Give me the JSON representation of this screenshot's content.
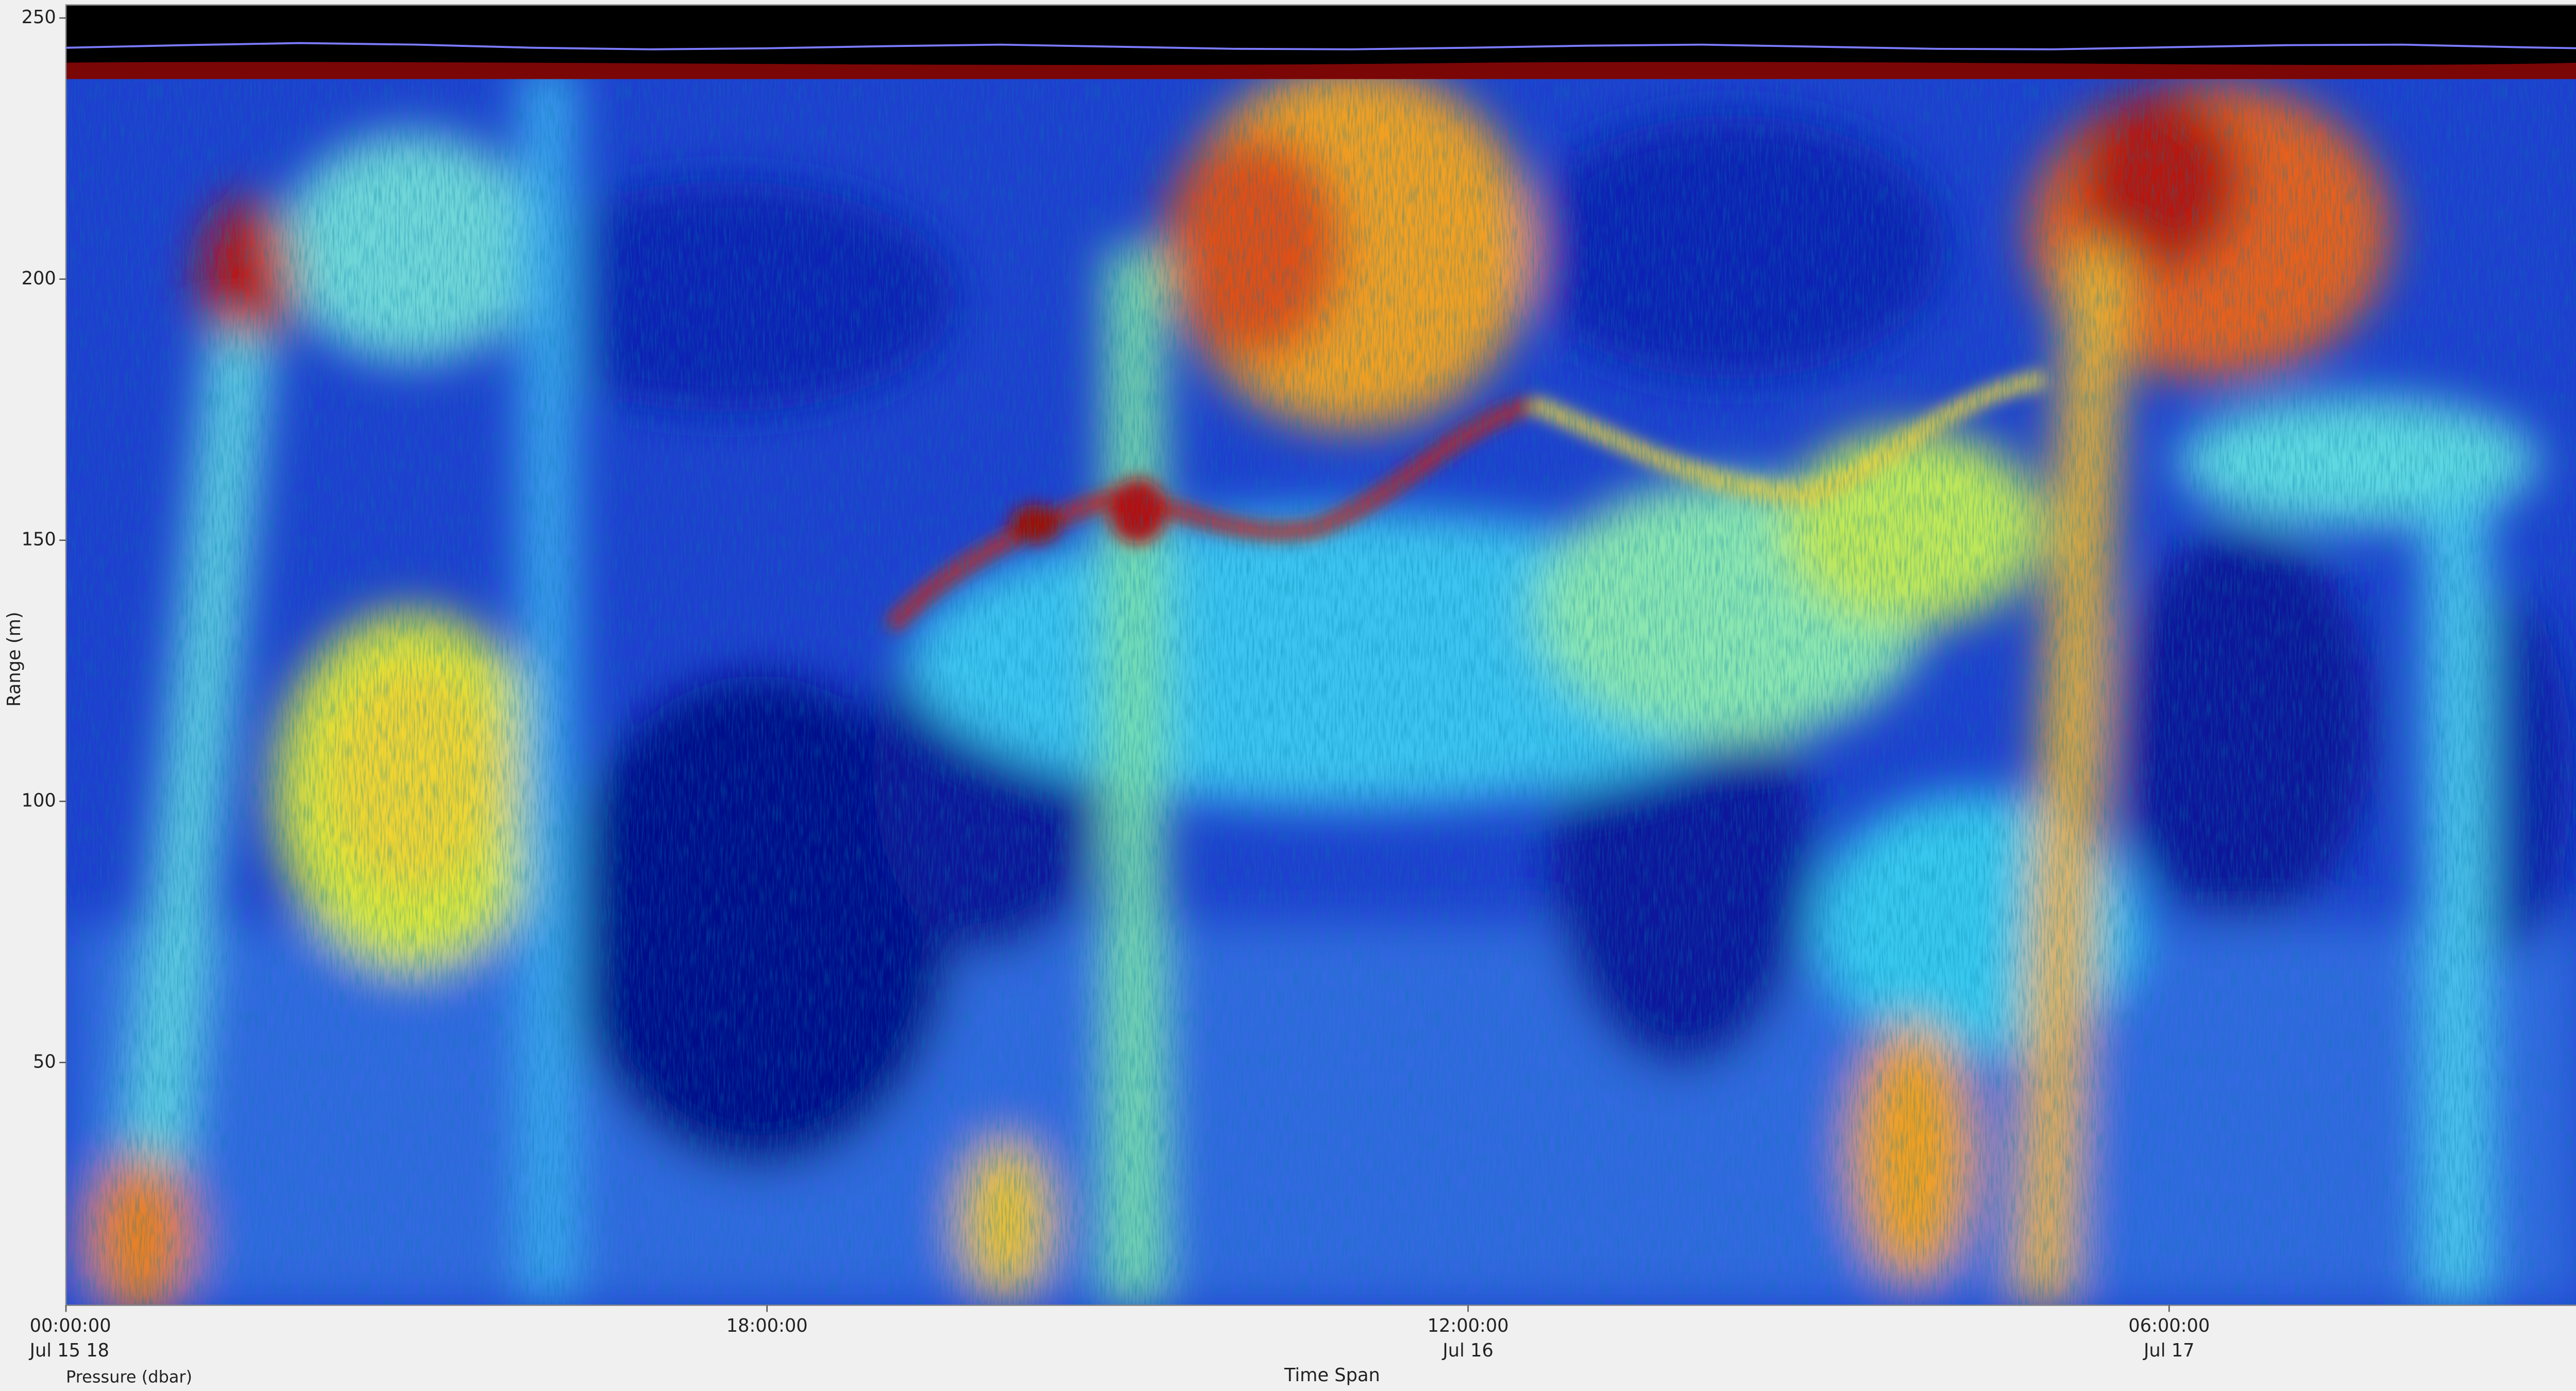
{
  "chart_data": {
    "type": "heatmap",
    "ylabel": "Range (m)",
    "xlabel": "Time Span",
    "ylim": [
      3.5,
      252.5
    ],
    "yticks": [
      50,
      100,
      150,
      200,
      250
    ],
    "xlim": [
      0,
      64.6
    ],
    "xticks": [
      {
        "value": 0,
        "label": "00:00:00"
      },
      {
        "value": 18,
        "label": "18:00:00"
      },
      {
        "value": 36,
        "label": "12:00:00"
      },
      {
        "value": 54,
        "label": "06:00:00"
      }
    ],
    "xtick_dates": [
      "Jul 15 18",
      null,
      "Jul 16",
      "Jul 17"
    ],
    "series": [
      {
        "name": "Pressure (dbar)",
        "color": "#7b7bff",
        "x": [
          0,
          3,
          6,
          9,
          12,
          15,
          18,
          21,
          24,
          27,
          30,
          33,
          36,
          39,
          42,
          45,
          48,
          51,
          54,
          57,
          60,
          63,
          64.6
        ],
        "values": [
          244.3,
          244.8,
          245.2,
          244.9,
          244.3,
          244.0,
          244.2,
          244.6,
          244.9,
          244.5,
          244.1,
          244.0,
          244.3,
          244.7,
          244.9,
          244.5,
          244.1,
          244.0,
          244.4,
          244.8,
          244.9,
          244.4,
          244.2
        ]
      }
    ]
  }
}
